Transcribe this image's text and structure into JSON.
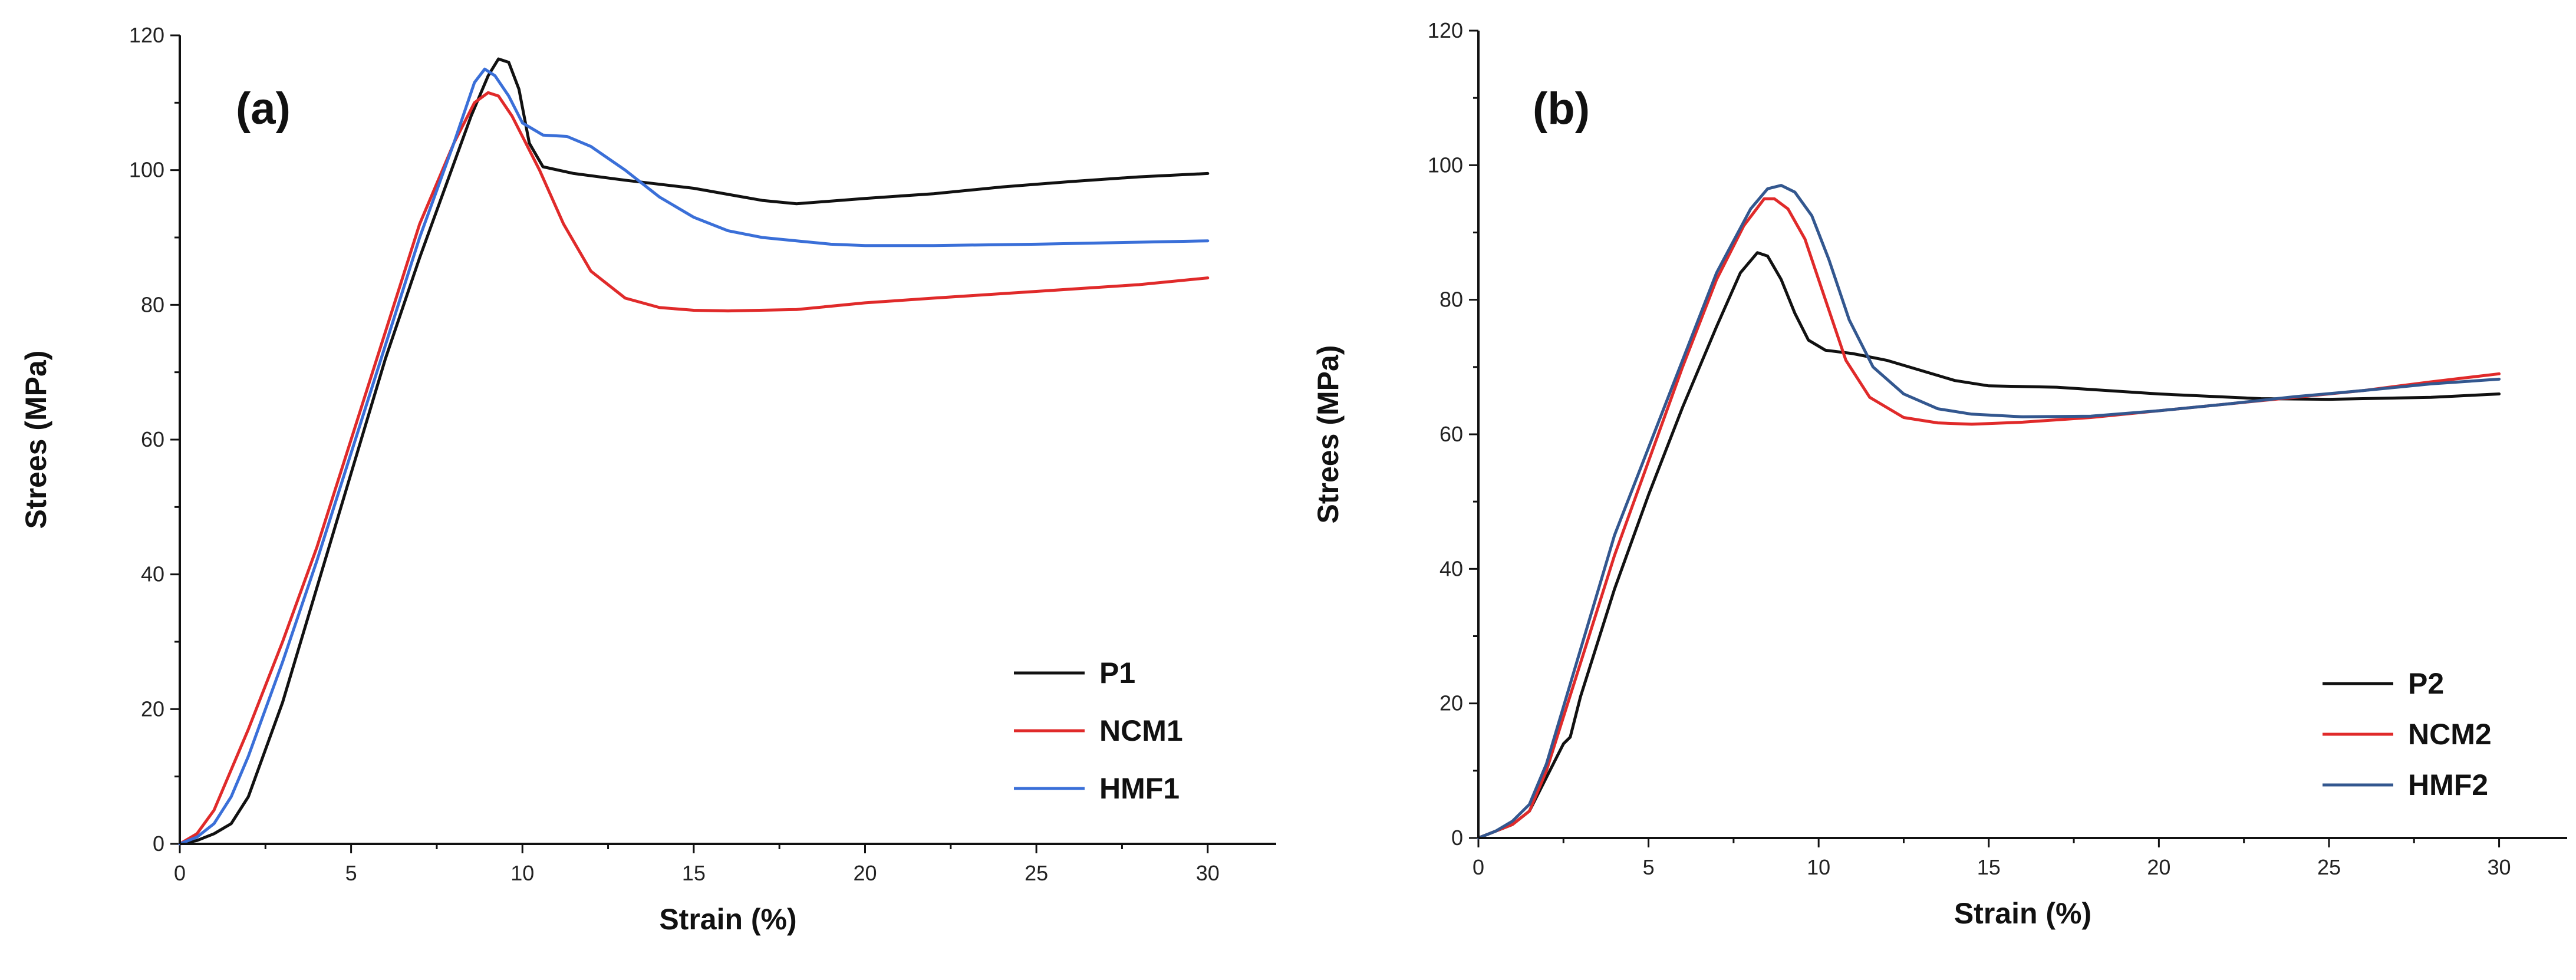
{
  "chart_data": [
    {
      "type": "line",
      "panel_label": "(a)",
      "xlabel": "Strain (%)",
      "ylabel": "Strees (MPa)",
      "xlim": [
        0,
        32
      ],
      "ylim": [
        0,
        120
      ],
      "xticks": [
        0,
        5,
        10,
        15,
        20,
        25,
        30
      ],
      "yticks": [
        0,
        20,
        40,
        60,
        80,
        100,
        120
      ],
      "legend_position": "bottom-right",
      "series": [
        {
          "name": "P1",
          "color": "#111111",
          "points": [
            [
              0,
              0
            ],
            [
              0.5,
              0.5
            ],
            [
              1.0,
              1.5
            ],
            [
              1.5,
              3
            ],
            [
              2.0,
              7
            ],
            [
              3,
              21
            ],
            [
              4,
              38
            ],
            [
              5,
              55
            ],
            [
              6,
              72
            ],
            [
              7,
              87
            ],
            [
              8,
              101
            ],
            [
              8.5,
              108
            ],
            [
              9,
              114
            ],
            [
              9.3,
              116.5
            ],
            [
              9.6,
              116
            ],
            [
              9.9,
              112
            ],
            [
              10.2,
              104
            ],
            [
              10.6,
              100.5
            ],
            [
              11.5,
              99.5
            ],
            [
              13,
              98.5
            ],
            [
              15,
              97.3
            ],
            [
              17,
              95.5
            ],
            [
              18,
              95
            ],
            [
              20,
              95.8
            ],
            [
              22,
              96.5
            ],
            [
              24,
              97.5
            ],
            [
              26,
              98.3
            ],
            [
              28,
              99
            ],
            [
              30,
              99.5
            ]
          ]
        },
        {
          "name": "NCM1",
          "color": "#e02a2a",
          "points": [
            [
              0,
              0
            ],
            [
              0.5,
              1.5
            ],
            [
              1.0,
              5
            ],
            [
              1.5,
              11
            ],
            [
              2,
              17
            ],
            [
              3,
              30
            ],
            [
              4,
              44
            ],
            [
              5,
              60
            ],
            [
              6,
              76
            ],
            [
              7,
              92
            ],
            [
              8,
              104
            ],
            [
              8.6,
              110
            ],
            [
              9.0,
              111.5
            ],
            [
              9.3,
              111
            ],
            [
              9.7,
              108
            ],
            [
              10.5,
              100
            ],
            [
              11.2,
              92
            ],
            [
              12,
              85
            ],
            [
              13,
              81
            ],
            [
              14,
              79.6
            ],
            [
              15,
              79.2
            ],
            [
              16,
              79.1
            ],
            [
              18,
              79.3
            ],
            [
              20,
              80.3
            ],
            [
              22,
              81
            ],
            [
              25,
              82
            ],
            [
              28,
              83
            ],
            [
              30,
              84
            ]
          ]
        },
        {
          "name": "HMF1",
          "color": "#3a6fd8",
          "points": [
            [
              0,
              0
            ],
            [
              0.5,
              1
            ],
            [
              1.0,
              3
            ],
            [
              1.5,
              7
            ],
            [
              2,
              13
            ],
            [
              3,
              27
            ],
            [
              4,
              42
            ],
            [
              5,
              58
            ],
            [
              6,
              74
            ],
            [
              7,
              90
            ],
            [
              8,
              104
            ],
            [
              8.6,
              113
            ],
            [
              8.9,
              115
            ],
            [
              9.2,
              114
            ],
            [
              9.6,
              111
            ],
            [
              10.0,
              107
            ],
            [
              10.6,
              105.2
            ],
            [
              11.3,
              105
            ],
            [
              12,
              103.5
            ],
            [
              13,
              100
            ],
            [
              14,
              96
            ],
            [
              15,
              93
            ],
            [
              16,
              91
            ],
            [
              17,
              90
            ],
            [
              18,
              89.5
            ],
            [
              19,
              89
            ],
            [
              20,
              88.8
            ],
            [
              22,
              88.8
            ],
            [
              25,
              89
            ],
            [
              28,
              89.3
            ],
            [
              30,
              89.5
            ]
          ]
        }
      ]
    },
    {
      "type": "line",
      "panel_label": "(b)",
      "xlabel": "Strain (%)",
      "ylabel": "Strees (MPa)",
      "xlim": [
        0,
        32
      ],
      "ylim": [
        0,
        120
      ],
      "xticks": [
        0,
        5,
        10,
        15,
        20,
        25,
        30
      ],
      "yticks": [
        0,
        20,
        40,
        60,
        80,
        100,
        120
      ],
      "legend_position": "bottom-right",
      "series": [
        {
          "name": "P2",
          "color": "#111111",
          "points": [
            [
              0,
              0
            ],
            [
              0.5,
              1
            ],
            [
              1.0,
              2
            ],
            [
              1.5,
              4
            ],
            [
              2,
              9
            ],
            [
              2.5,
              14
            ],
            [
              2.7,
              15
            ],
            [
              3,
              21
            ],
            [
              4,
              37
            ],
            [
              5,
              51
            ],
            [
              6,
              64
            ],
            [
              7,
              76
            ],
            [
              7.7,
              84
            ],
            [
              8.2,
              87
            ],
            [
              8.5,
              86.5
            ],
            [
              8.9,
              83
            ],
            [
              9.3,
              78
            ],
            [
              9.7,
              74
            ],
            [
              10.2,
              72.5
            ],
            [
              11,
              72
            ],
            [
              12,
              71
            ],
            [
              13,
              69.5
            ],
            [
              14,
              68
            ],
            [
              15,
              67.2
            ],
            [
              17,
              67
            ],
            [
              20,
              66
            ],
            [
              23,
              65.3
            ],
            [
              25,
              65.2
            ],
            [
              28,
              65.5
            ],
            [
              30,
              66
            ]
          ]
        },
        {
          "name": "NCM2",
          "color": "#e02a2a",
          "points": [
            [
              0,
              0
            ],
            [
              0.5,
              1
            ],
            [
              1.0,
              2
            ],
            [
              1.5,
              4
            ],
            [
              2,
              10
            ],
            [
              3,
              26
            ],
            [
              4,
              42
            ],
            [
              5,
              56
            ],
            [
              6,
              70
            ],
            [
              7,
              83
            ],
            [
              7.8,
              91
            ],
            [
              8.4,
              95
            ],
            [
              8.7,
              95
            ],
            [
              9.1,
              93.5
            ],
            [
              9.6,
              89
            ],
            [
              10.2,
              80
            ],
            [
              10.8,
              71
            ],
            [
              11.5,
              65.5
            ],
            [
              12.5,
              62.5
            ],
            [
              13.5,
              61.7
            ],
            [
              14.5,
              61.5
            ],
            [
              16,
              61.8
            ],
            [
              18,
              62.5
            ],
            [
              20,
              63.5
            ],
            [
              22,
              64.5
            ],
            [
              24,
              65.5
            ],
            [
              26,
              66.5
            ],
            [
              28,
              67.8
            ],
            [
              30,
              69
            ]
          ]
        },
        {
          "name": "HMF2",
          "color": "#33578f",
          "points": [
            [
              0,
              0
            ],
            [
              0.5,
              1
            ],
            [
              1.0,
              2.5
            ],
            [
              1.5,
              5
            ],
            [
              2,
              11
            ],
            [
              3,
              28
            ],
            [
              4,
              45
            ],
            [
              5,
              58
            ],
            [
              6,
              71
            ],
            [
              7,
              84
            ],
            [
              8,
              93.5
            ],
            [
              8.5,
              96.5
            ],
            [
              8.9,
              97
            ],
            [
              9.3,
              96
            ],
            [
              9.8,
              92.5
            ],
            [
              10.3,
              86
            ],
            [
              10.9,
              77
            ],
            [
              11.6,
              70
            ],
            [
              12.5,
              66
            ],
            [
              13.5,
              63.8
            ],
            [
              14.5,
              63
            ],
            [
              16,
              62.6
            ],
            [
              18,
              62.7
            ],
            [
              20,
              63.5
            ],
            [
              22,
              64.5
            ],
            [
              24,
              65.6
            ],
            [
              26,
              66.5
            ],
            [
              28,
              67.5
            ],
            [
              30,
              68.2
            ]
          ]
        }
      ]
    }
  ]
}
